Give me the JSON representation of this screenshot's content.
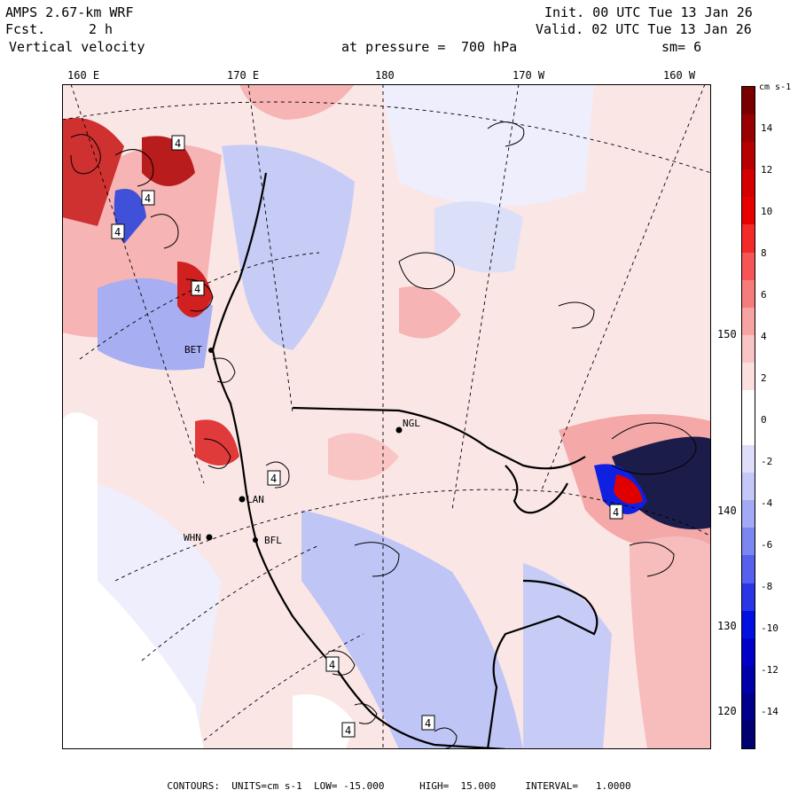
{
  "header": {
    "model": "AMPS 2.67-km WRF",
    "fcst_label": "Fcst.",
    "fcst_value": "2 h",
    "field": "Vertical velocity",
    "init": "Init. 00 UTC Tue 13 Jan 26",
    "valid": "Valid. 02 UTC Tue 13 Jan 26",
    "pressure_label": "at pressure =",
    "pressure_value": "700 hPa",
    "smooth": "sm= 6"
  },
  "axes": {
    "top_longitudes": [
      "160 E",
      "170 E",
      "180",
      "170 W",
      "160 W"
    ],
    "right_latitudes": [
      "150 W",
      "140 W",
      "130 W",
      "120 W"
    ]
  },
  "stations": [
    "NGL",
    "LAN",
    "WHN",
    "BET",
    "BFL"
  ],
  "contour_boxes": [
    "4",
    "4",
    "4",
    "4",
    "4",
    "4",
    "4",
    "4",
    "4"
  ],
  "colorbar": {
    "units": "cm s-1",
    "labels": [
      "14",
      "12",
      "10",
      "8",
      "6",
      "4",
      "2",
      "0",
      "-2",
      "-4",
      "-6",
      "-8",
      "-10",
      "-12",
      "-14"
    ],
    "colors": [
      "#7a0000",
      "#990000",
      "#b80000",
      "#d40000",
      "#e60000",
      "#f22a2a",
      "#f55555",
      "#f67c7c",
      "#f7a3a3",
      "#f9c4c4",
      "#fbdede",
      "#ffffff",
      "#ffffff",
      "#dedefb",
      "#c4c8f9",
      "#a3aaf5",
      "#7c86f0",
      "#5560ec",
      "#2a36e6",
      "#0010e0",
      "#0000c8",
      "#0000aa",
      "#00008c",
      "#000070"
    ]
  },
  "footer": {
    "text": "CONTOURS:  UNITS=cm s-1  LOW= -15.000      HIGH=  15.000     INTERVAL=   1.0000"
  }
}
